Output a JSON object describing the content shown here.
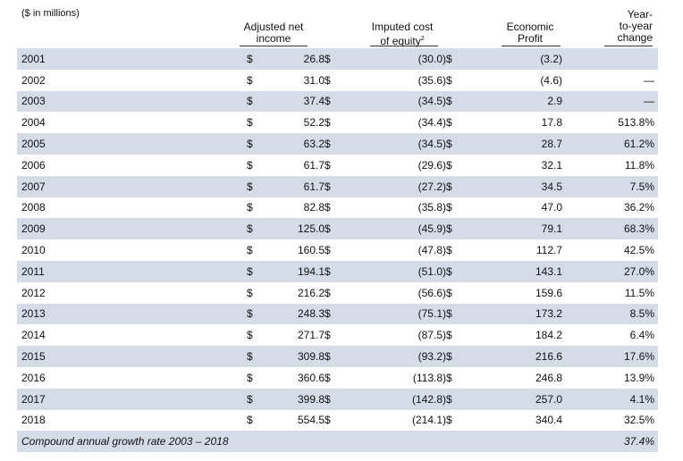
{
  "units_label": "($ in millions)",
  "headers": {
    "adjusted_net_income_line1": "Adjusted net",
    "adjusted_net_income_line2": "income",
    "imputed_cost_line1": "Imputed cost",
    "imputed_cost_line2": "of equity",
    "imputed_cost_footnote": "2",
    "economic_profit_line1": "Economic",
    "economic_profit_line2": "Profit",
    "yoy_line1": "Year-",
    "yoy_line2": "to-year",
    "yoy_line3": "change"
  },
  "currency_symbol": "$",
  "rows": [
    {
      "year": "2001",
      "adj": "26.8",
      "imp": "(30.0)",
      "eco": "(3.2)",
      "yoy": ""
    },
    {
      "year": "2002",
      "adj": "31.0",
      "imp": "(35.6)",
      "eco": "(4.6)",
      "yoy": "—"
    },
    {
      "year": "2003",
      "adj": "37.4",
      "imp": "(34.5)",
      "eco": "2.9",
      "yoy": "—"
    },
    {
      "year": "2004",
      "adj": "52.2",
      "imp": "(34.4)",
      "eco": "17.8",
      "yoy": "513.8%"
    },
    {
      "year": "2005",
      "adj": "63.2",
      "imp": "(34.5)",
      "eco": "28.7",
      "yoy": "61.2%"
    },
    {
      "year": "2006",
      "adj": "61.7",
      "imp": "(29.6)",
      "eco": "32.1",
      "yoy": "11.8%"
    },
    {
      "year": "2007",
      "adj": "61.7",
      "imp": "(27.2)",
      "eco": "34.5",
      "yoy": "7.5%"
    },
    {
      "year": "2008",
      "adj": "82.8",
      "imp": "(35.8)",
      "eco": "47.0",
      "yoy": "36.2%"
    },
    {
      "year": "2009",
      "adj": "125.0",
      "imp": "(45.9)",
      "eco": "79.1",
      "yoy": "68.3%"
    },
    {
      "year": "2010",
      "adj": "160.5",
      "imp": "(47.8)",
      "eco": "112.7",
      "yoy": "42.5%"
    },
    {
      "year": "2011",
      "adj": "194.1",
      "imp": "(51.0)",
      "eco": "143.1",
      "yoy": "27.0%"
    },
    {
      "year": "2012",
      "adj": "216.2",
      "imp": "(56.6)",
      "eco": "159.6",
      "yoy": "11.5%"
    },
    {
      "year": "2013",
      "adj": "248.3",
      "imp": "(75.1)",
      "eco": "173.2",
      "yoy": "8.5%"
    },
    {
      "year": "2014",
      "adj": "271.7",
      "imp": "(87.5)",
      "eco": "184.2",
      "yoy": "6.4%"
    },
    {
      "year": "2015",
      "adj": "309.8",
      "imp": "(93.2)",
      "eco": "216.6",
      "yoy": "17.6%"
    },
    {
      "year": "2016",
      "adj": "360.6",
      "imp": "(113.8)",
      "eco": "246.8",
      "yoy": "13.9%"
    },
    {
      "year": "2017",
      "adj": "399.8",
      "imp": "(142.8)",
      "eco": "257.0",
      "yoy": "4.1%"
    },
    {
      "year": "2018",
      "adj": "554.5",
      "imp": "(214.1)",
      "eco": "340.4",
      "yoy": "32.5%"
    }
  ],
  "cagr": {
    "label": "Compound annual growth rate 2003 – 2018",
    "value": "37.4%"
  }
}
